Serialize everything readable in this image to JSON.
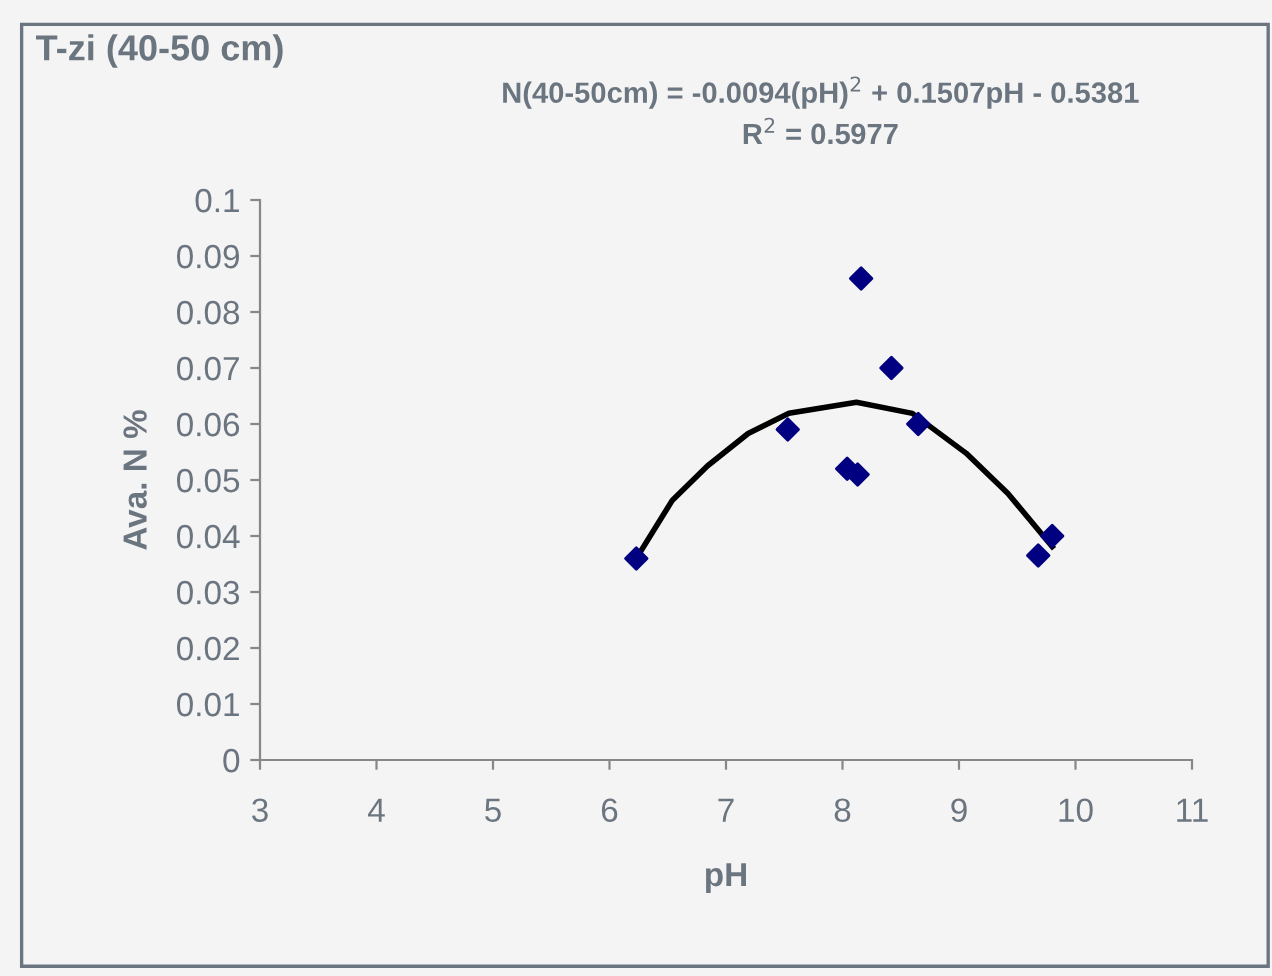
{
  "chart_data": {
    "type": "scatter",
    "title": "T-zi (40-50 cm)",
    "xlabel": "pH",
    "ylabel": "Ava. N %",
    "annotations": [
      "N(40-50cm) = -0.0094(pH)$^{2}$ + 0.1507pH - 0.5381",
      "R$^{2}$ = 0.5977"
    ],
    "series": [
      {
        "color": "#000080",
        "marker": "diamond",
        "x": [
          6.23,
          7.53,
          8.04,
          8.13,
          8.16,
          8.42,
          8.65,
          9.68,
          9.8
        ],
        "values": [
          0.036,
          0.059,
          0.052,
          0.051,
          0.086,
          0.07,
          0.06,
          0.0365,
          0.04
        ]
      },
      {
        "type": "line",
        "color": "#000000",
        "marker": "none",
        "line_style": "solid",
        "x": [
          6.23,
          6.54,
          6.84,
          7.19,
          7.54,
          8.12,
          8.6,
          9.06,
          9.42,
          9.8
        ],
        "values": [
          0.036,
          0.0464,
          0.0525,
          0.0583,
          0.0619,
          0.0639,
          0.0619,
          0.0548,
          0.0476,
          0.0381
        ]
      }
    ],
    "xlim": [
      3,
      11
    ],
    "xticks": [
      3,
      4,
      5,
      6,
      7,
      8,
      9,
      10,
      11
    ],
    "ylim": [
      0,
      0.1
    ],
    "yticks": [
      0,
      0.01,
      0.02,
      0.03,
      0.04,
      0.05,
      0.06,
      0.07,
      0.08,
      0.09,
      0.1
    ],
    "grid": false,
    "legend": false
  }
}
